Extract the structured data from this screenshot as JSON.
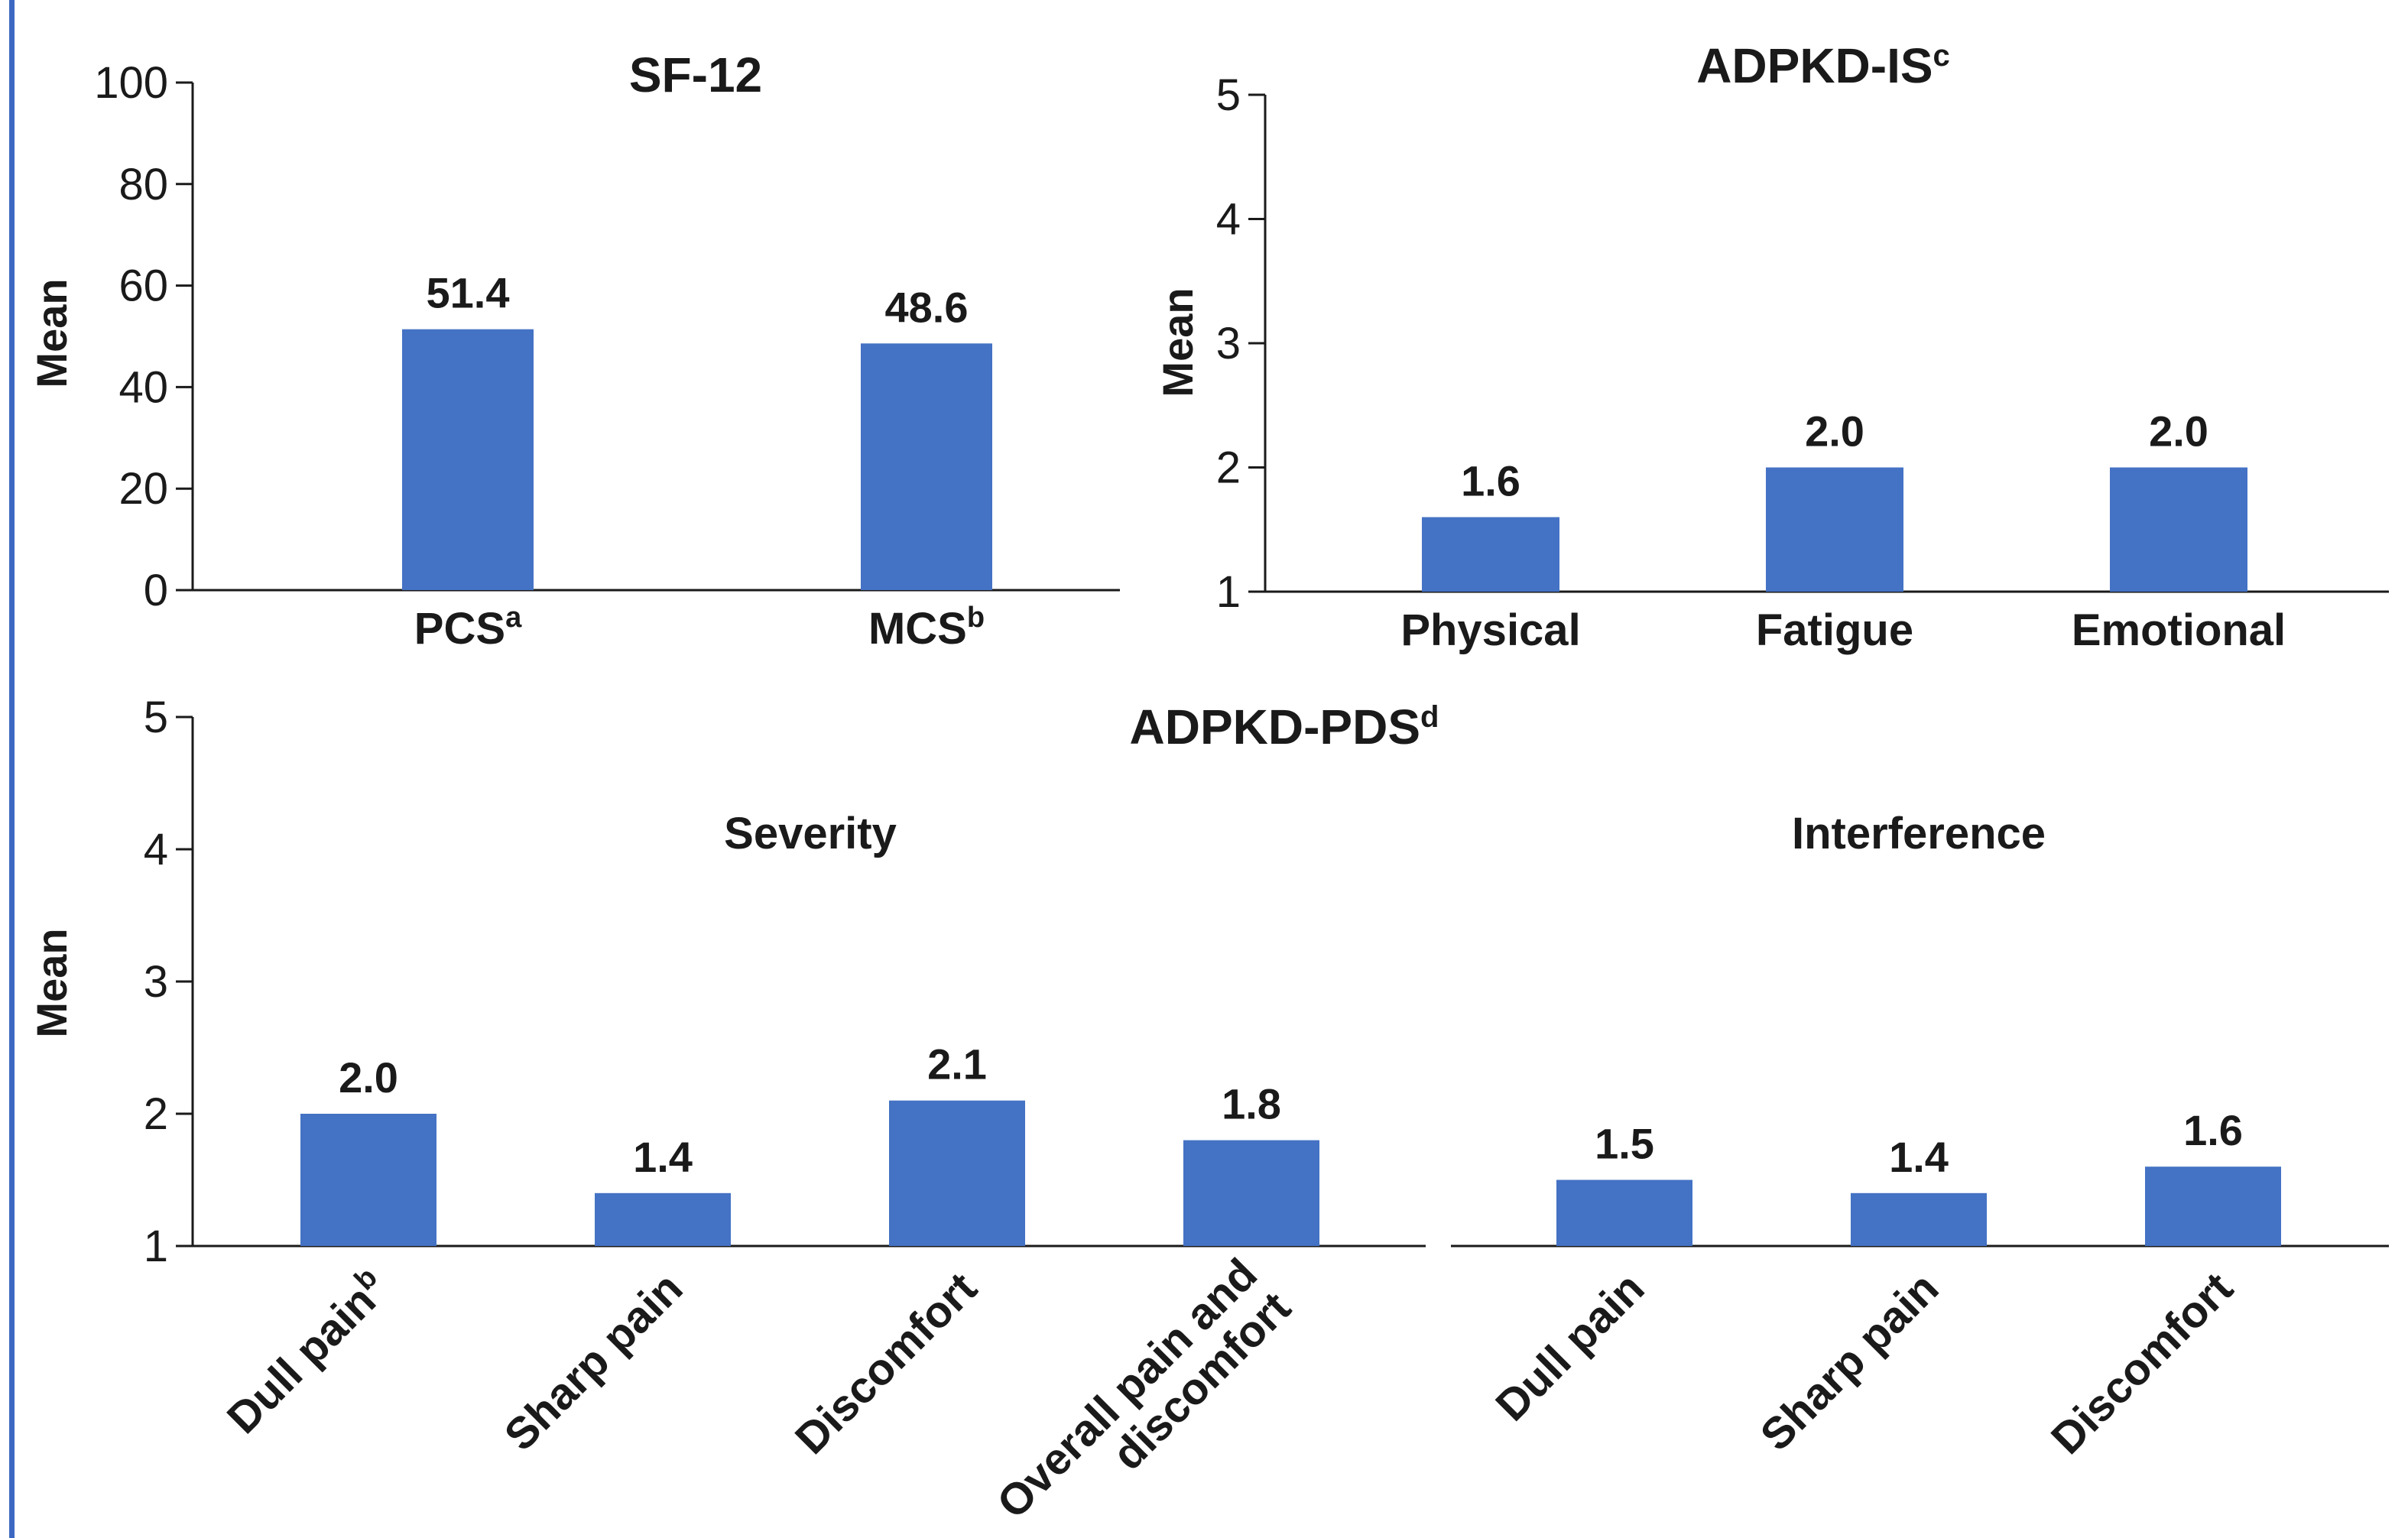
{
  "colors": {
    "bar": "#4472c4",
    "frame_line": "#3d68c1",
    "text": "#1a1a1a"
  },
  "chart_data": [
    {
      "type": "bar",
      "title": "SF-12",
      "ylabel": "Mean",
      "ylim": [
        0,
        100
      ],
      "yticks": [
        "0",
        "20",
        "40",
        "60",
        "80",
        "100"
      ],
      "categories": [
        {
          "label": "PCS",
          "sup": "a"
        },
        {
          "label": "MCS",
          "sup": "b"
        }
      ],
      "values": [
        51.4,
        48.6
      ],
      "value_labels": [
        "51.4",
        "48.6"
      ]
    },
    {
      "type": "bar",
      "title": "ADPKD-IS",
      "title_sup": "c",
      "ylabel": "Mean",
      "ylim": [
        1,
        5
      ],
      "yticks": [
        "1",
        "2",
        "3",
        "4",
        "5"
      ],
      "categories": [
        {
          "label": "Physical"
        },
        {
          "label": "Fatigue"
        },
        {
          "label": "Emotional"
        }
      ],
      "values": [
        1.6,
        2.0,
        2.0
      ],
      "value_labels": [
        "1.6",
        "2.0",
        "2.0"
      ]
    },
    {
      "type": "bar",
      "title": "ADPKD-PDS",
      "title_sup": "d",
      "ylabel": "Mean",
      "ylim": [
        1,
        5
      ],
      "yticks": [
        "1",
        "2",
        "3",
        "4",
        "5"
      ],
      "groups": [
        {
          "name": "Severity",
          "categories": [
            {
              "label": "Dull pain",
              "sup": "b"
            },
            {
              "label": "Sharp pain"
            },
            {
              "label": "Discomfort"
            },
            {
              "label": "Overall pain and discomfort",
              "lines": [
                "Overall pain and",
                "discomfort"
              ]
            }
          ],
          "values": [
            2.0,
            1.4,
            2.1,
            1.8
          ],
          "value_labels": [
            "2.0",
            "1.4",
            "2.1",
            "1.8"
          ]
        },
        {
          "name": "Interference",
          "categories": [
            {
              "label": "Dull pain"
            },
            {
              "label": "Sharp pain"
            },
            {
              "label": "Discomfort"
            }
          ],
          "values": [
            1.5,
            1.4,
            1.6
          ],
          "value_labels": [
            "1.5",
            "1.4",
            "1.6"
          ]
        }
      ]
    }
  ]
}
